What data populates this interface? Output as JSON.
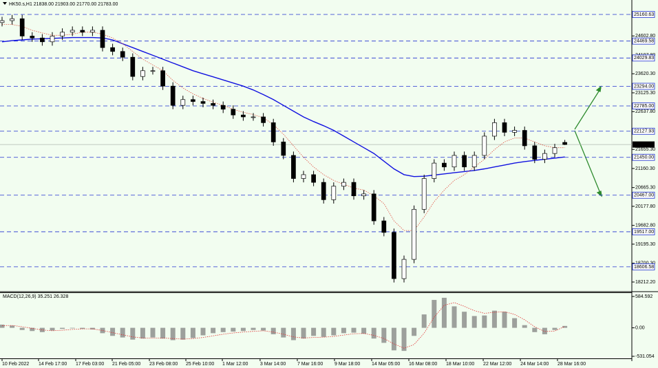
{
  "chart_data": [
    {
      "type": "candlestick",
      "title": "HK50.s,H1  21838.00 21903.00 21770.00 21783.00",
      "ylim": [
        17944,
        25536
      ],
      "yticks": [
        {
          "value": 24602.8,
          "label": "24602.80"
        },
        {
          "value": 24107.8,
          "label": "24107.80"
        },
        {
          "value": 23620.3,
          "label": "23620.30"
        },
        {
          "value": 23125.3,
          "label": "23125.30"
        },
        {
          "value": 22637.8,
          "label": "22637.80"
        },
        {
          "value": 21655.3,
          "label": "21655.30"
        },
        {
          "value": 21160.3,
          "label": "21160.30"
        },
        {
          "value": 20665.3,
          "label": "20665.30"
        },
        {
          "value": 20177.8,
          "label": "20177.80"
        },
        {
          "value": 19682.8,
          "label": "19682.80"
        },
        {
          "value": 19195.3,
          "label": "19195.30"
        },
        {
          "value": 18700.3,
          "label": "18700.30"
        },
        {
          "value": 18212.2,
          "label": "18212.20"
        }
      ],
      "levels": [
        25160.63,
        24469.58,
        24029.83,
        {
          "value": 23294,
          "label": "23294.00"
        },
        {
          "value": 22785,
          "label": "22785.00"
        },
        22127.93,
        {
          "value": 21450,
          "label": "21450.00"
        },
        {
          "value": 20467,
          "label": "20467.00"
        },
        {
          "value": 19517,
          "label": "19517.00"
        },
        18606.58
      ],
      "current": {
        "value": 21783,
        "label": "21783.00"
      },
      "open": [
        24950,
        25000,
        25050,
        24600,
        24550,
        24450,
        24600,
        24700,
        24750,
        24700,
        24750,
        24300,
        24200,
        24050,
        23550,
        23700,
        23700,
        23300,
        22800,
        22950,
        22900,
        22850,
        22800,
        22700,
        22550,
        22500,
        22500,
        22350,
        21850,
        21500,
        20900,
        21000,
        20800,
        20350,
        20700,
        20800,
        20450,
        20500,
        19800,
        19500,
        18300,
        18800,
        20100,
        20900,
        21300,
        21200,
        21500,
        21200,
        21500,
        22000,
        22350,
        22100,
        22150,
        21750,
        21400,
        21550,
        21838
      ],
      "high": [
        25100,
        25150,
        25150,
        24700,
        24650,
        24700,
        24800,
        24850,
        24850,
        24850,
        24850,
        24400,
        24300,
        24150,
        23800,
        23800,
        23800,
        23400,
        23050,
        23050,
        23000,
        22950,
        22900,
        22800,
        22650,
        22600,
        22600,
        22450,
        21950,
        21600,
        21100,
        21100,
        20900,
        20800,
        20900,
        20900,
        20600,
        20600,
        19900,
        19600,
        18900,
        20200,
        21000,
        21400,
        21400,
        21600,
        21600,
        21600,
        22100,
        22450,
        22450,
        22250,
        22250,
        21850,
        21650,
        21800,
        21903
      ],
      "low": [
        24850,
        24900,
        24500,
        24450,
        24350,
        24350,
        24500,
        24600,
        24600,
        24600,
        24200,
        24100,
        23950,
        23450,
        23450,
        23600,
        23200,
        22700,
        22700,
        22800,
        22750,
        22700,
        22600,
        22450,
        22400,
        22400,
        22250,
        21750,
        21400,
        20800,
        20800,
        20700,
        20250,
        20250,
        20600,
        20350,
        20350,
        19700,
        19400,
        18200,
        18200,
        18700,
        20000,
        20800,
        21100,
        21100,
        21100,
        21100,
        21400,
        21900,
        22000,
        22000,
        21650,
        21300,
        21300,
        21450,
        21770
      ],
      "close": [
        25000,
        25050,
        24600,
        24550,
        24450,
        24600,
        24700,
        24750,
        24700,
        24750,
        24300,
        24200,
        24050,
        23550,
        23700,
        23700,
        23300,
        22800,
        22950,
        22900,
        22850,
        22800,
        22700,
        22550,
        22500,
        22500,
        22350,
        21850,
        21500,
        20900,
        21000,
        20800,
        20350,
        20700,
        20800,
        20450,
        20500,
        19800,
        19500,
        18300,
        18800,
        20100,
        20900,
        21300,
        21200,
        21500,
        21200,
        21500,
        22000,
        22350,
        22100,
        22150,
        21750,
        21400,
        21550,
        21700,
        21783
      ],
      "series": [
        {
          "color": "#1010e0",
          "values": [
            24450,
            24480,
            24500,
            24520,
            24530,
            24540,
            24550,
            24560,
            24560,
            24560,
            24550,
            24500,
            24400,
            24300,
            24200,
            24100,
            24000,
            23900,
            23800,
            23700,
            23620,
            23540,
            23460,
            23380,
            23300,
            23200,
            23080,
            22950,
            22800,
            22650,
            22500,
            22380,
            22270,
            22150,
            22000,
            21850,
            21700,
            21550,
            21350,
            21150,
            21000,
            20950,
            20960,
            20990,
            21020,
            21050,
            21080,
            21110,
            21150,
            21200,
            21250,
            21300,
            21340,
            21370,
            21400,
            21430,
            21460
          ]
        },
        {
          "color": "#e05040",
          "values": [
            24900,
            24900,
            24850,
            24750,
            24680,
            24620,
            24620,
            24650,
            24700,
            24700,
            24650,
            24550,
            24400,
            24200,
            24000,
            23850,
            23700,
            23450,
            23250,
            23100,
            22980,
            22880,
            22800,
            22700,
            22620,
            22560,
            22480,
            22300,
            22050,
            21750,
            21450,
            21200,
            21000,
            20850,
            20750,
            20650,
            20600,
            20450,
            20250,
            19800,
            19550,
            19550,
            19900,
            20300,
            20600,
            20850,
            21000,
            21200,
            21400,
            21650,
            21850,
            21950,
            21950,
            21850,
            21750,
            21700,
            21700
          ]
        }
      ]
    },
    {
      "type": "bar",
      "title": "MACD(12,26,9) 35.251 26.328",
      "ylim": [
        -531.054,
        584.592
      ],
      "yticks": [
        584.592,
        {
          "value": 0,
          "label": "0.00"
        },
        -531.054
      ],
      "xticks": [
        {
          "value": 0,
          "label": "10 Feb 2022"
        },
        {
          "value": 3.63,
          "label": "14 Feb 17:00"
        },
        {
          "value": 7.33,
          "label": "17 Feb 03:00"
        },
        {
          "value": 10.96,
          "label": "21 Feb 05:00"
        },
        {
          "value": 14.66,
          "label": "23 Feb 08:00"
        },
        {
          "value": 18.29,
          "label": "25 Feb 10:00"
        },
        {
          "value": 21.92,
          "label": "1 Mar 12:00"
        },
        {
          "value": 25.68,
          "label": "3 Mar 14:00"
        },
        {
          "value": 29.38,
          "label": "7 Mar 16:00"
        },
        {
          "value": 33.08,
          "label": "9 Mar 18:00"
        },
        {
          "value": 36.78,
          "label": "14 Mar 05:00"
        },
        {
          "value": 40.48,
          "label": "16 Mar 08:00"
        },
        {
          "value": 44.18,
          "label": "18 Mar 10:00"
        },
        {
          "value": 47.88,
          "label": "22 Mar 12:00"
        },
        {
          "value": 51.58,
          "label": "24 Mar 14:00"
        },
        {
          "value": 55.27,
          "label": "28 Mar 16:00"
        }
      ],
      "values": [
        60,
        40,
        -40,
        -60,
        -80,
        -50,
        -20,
        -10,
        -20,
        -30,
        -100,
        -150,
        -180,
        -220,
        -200,
        -180,
        -200,
        -230,
        -220,
        -190,
        -140,
        -100,
        -80,
        -70,
        -60,
        -40,
        -50,
        -120,
        -180,
        -230,
        -200,
        -150,
        -170,
        -140,
        -100,
        -90,
        -110,
        -200,
        -280,
        -420,
        -430,
        -150,
        250,
        520,
        560,
        400,
        300,
        220,
        230,
        320,
        300,
        180,
        50,
        -80,
        -120,
        -40,
        35.251
      ],
      "color": "#808080",
      "signal": {
        "color": "#e03030",
        "values": [
          40,
          45,
          20,
          -10,
          -40,
          -55,
          -45,
          -30,
          -20,
          -20,
          -50,
          -90,
          -130,
          -170,
          -190,
          -190,
          -190,
          -200,
          -210,
          -200,
          -180,
          -150,
          -120,
          -95,
          -80,
          -65,
          -55,
          -80,
          -120,
          -170,
          -190,
          -180,
          -175,
          -160,
          -135,
          -110,
          -105,
          -140,
          -200,
          -300,
          -380,
          -310,
          -100,
          200,
          420,
          470,
          400,
          320,
          270,
          290,
          300,
          250,
          150,
          20,
          -70,
          -60,
          26.328
        ]
      }
    }
  ]
}
